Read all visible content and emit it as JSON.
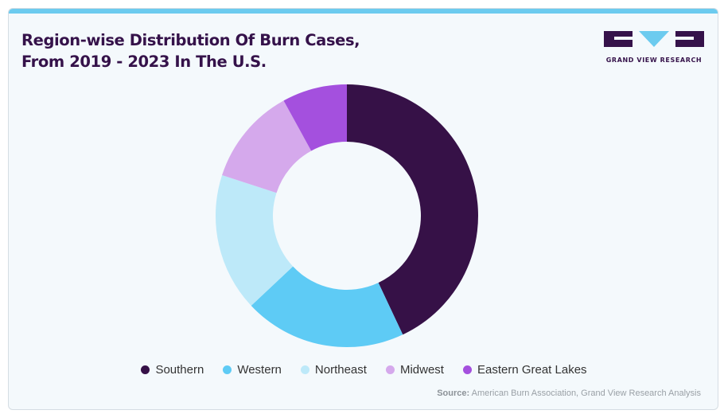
{
  "title_lines": [
    "Region-wise Distribution Of Burn Cases,",
    "From 2019 - 2023 In The U.S."
  ],
  "logo_text": "GRAND VIEW RESEARCH",
  "source_label": "Source:",
  "source_text": "American Burn Association, Grand View Research Analysis",
  "colors": {
    "accent_bar": "#6ccbef",
    "title": "#35124a"
  },
  "chart_data": {
    "type": "pie",
    "variant": "donut",
    "categories": [
      "Southern",
      "Western",
      "Northeast",
      "Midwest",
      "Eastern Great Lakes"
    ],
    "values": [
      43,
      20,
      17,
      12,
      8
    ],
    "unit": "%",
    "colors": [
      "#361147",
      "#5ecbf5",
      "#bde9f9",
      "#d5a9ec",
      "#a450de"
    ],
    "start_angle_deg": 0,
    "direction": "clockwise",
    "legend_position": "bottom"
  }
}
